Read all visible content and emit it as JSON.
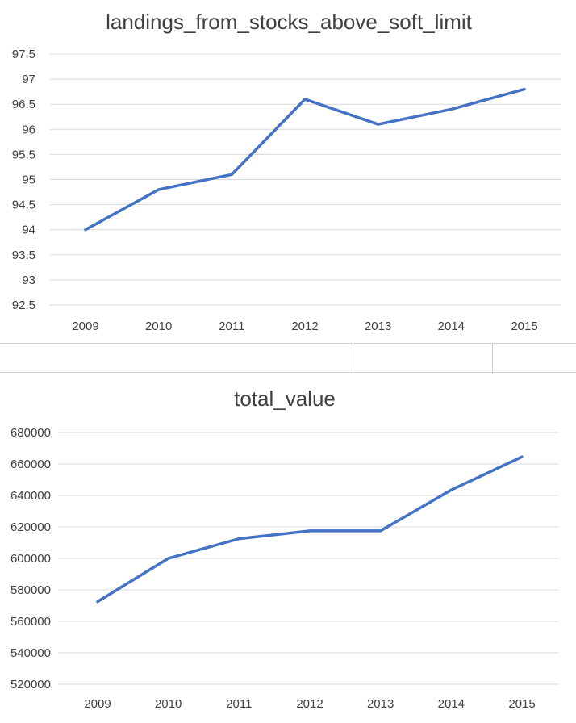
{
  "chart_data": [
    {
      "type": "line",
      "title": "landings_from_stocks_above_soft_limit",
      "categories": [
        "2009",
        "2010",
        "2011",
        "2012",
        "2013",
        "2014",
        "2015"
      ],
      "values": [
        94.0,
        94.8,
        95.1,
        96.6,
        96.1,
        96.4,
        96.8
      ],
      "yticks": [
        "97.5",
        "97",
        "96.5",
        "96",
        "95.5",
        "95",
        "94.5",
        "94",
        "93.5",
        "93",
        "92.5"
      ],
      "ylim": [
        92.5,
        97.5
      ],
      "grid": true,
      "line_color": "#4472c4"
    },
    {
      "type": "line",
      "title": "total_value",
      "categories": [
        "2009",
        "2010",
        "2011",
        "2012",
        "2013",
        "2014",
        "2015"
      ],
      "values": [
        572500,
        600000,
        612500,
        617500,
        617500,
        643500,
        664500
      ],
      "yticks": [
        "680000",
        "660000",
        "640000",
        "620000",
        "600000",
        "580000",
        "560000",
        "540000",
        "520000"
      ],
      "ylim": [
        520000,
        680000
      ],
      "grid": true,
      "line_color": "#4472c4"
    }
  ]
}
